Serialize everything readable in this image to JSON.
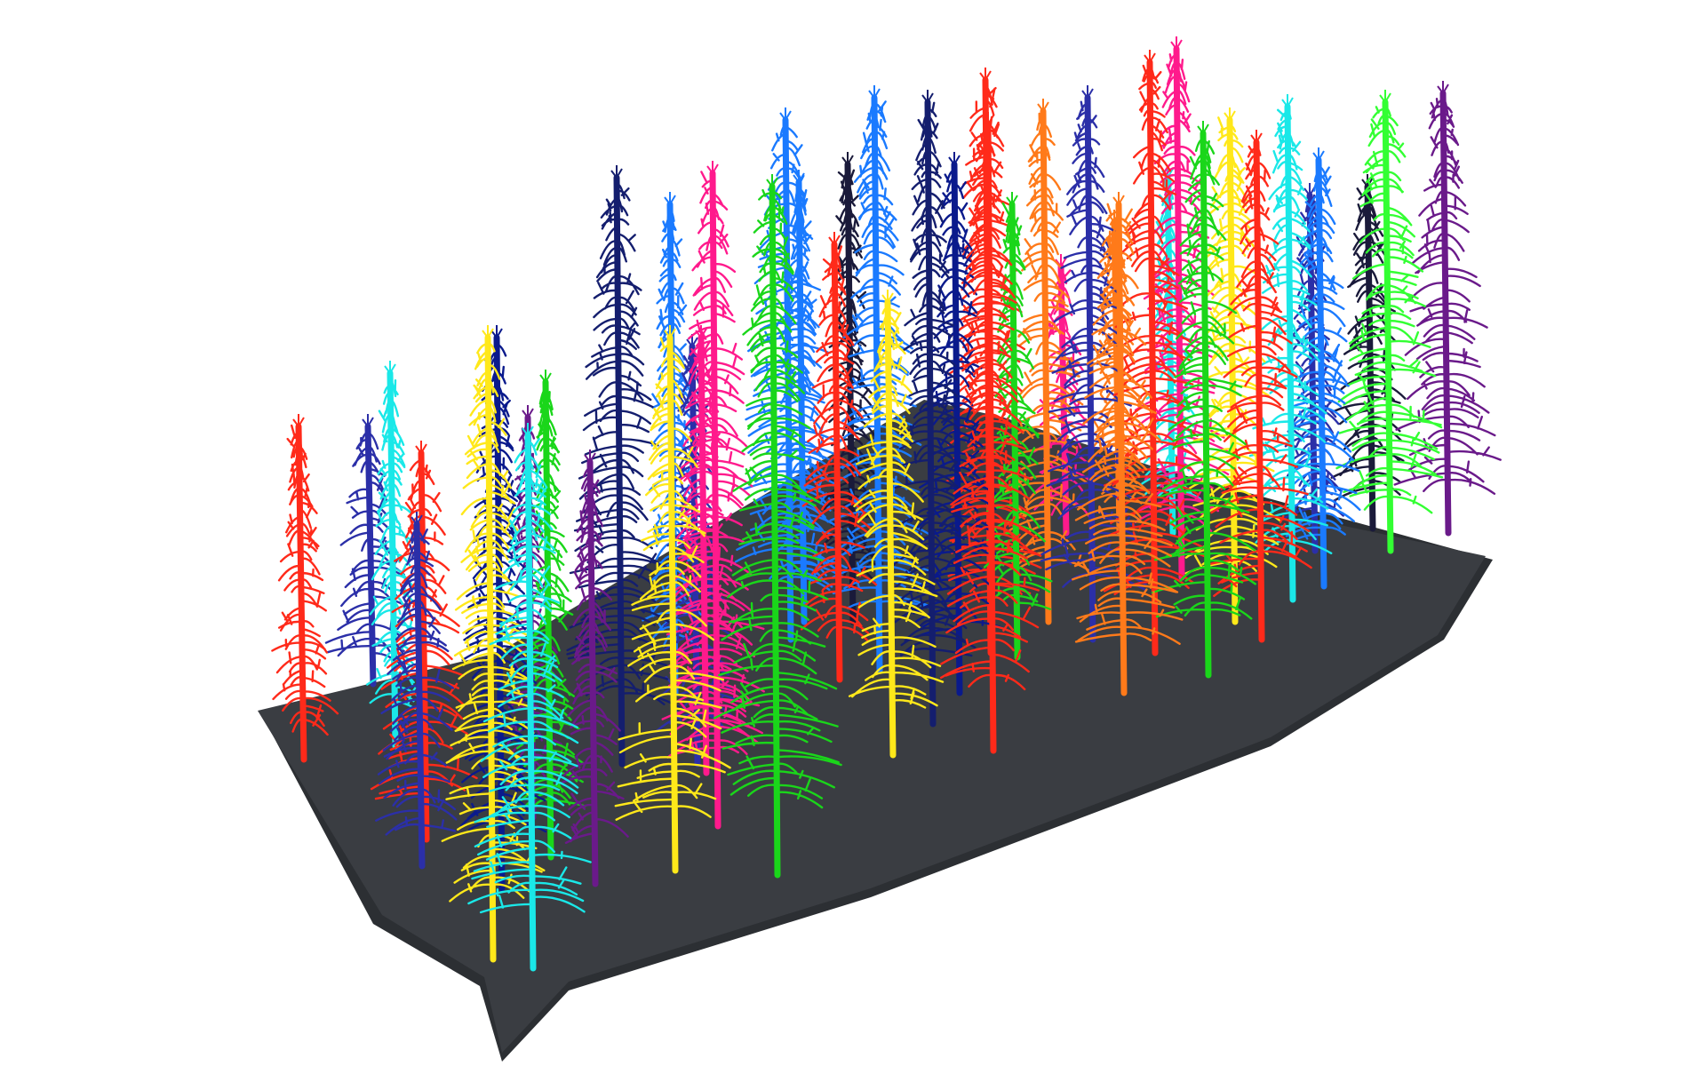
{
  "scene": {
    "background_color": "#ffffff",
    "ground_color": "#3a3d42",
    "ground_shadow_color": "#2c2f33",
    "tree_count": 46,
    "tree_palette": [
      "#ff2a1a",
      "#2b2fa8",
      "#0a1a8c",
      "#ffe81a",
      "#1ad61a",
      "#a01aa0",
      "#ff1a8c",
      "#1a7aff",
      "#1ae8e8",
      "#ff7a1a",
      "#1a1a3a",
      "#33ff33",
      "#6a1a8a",
      "#141e6e"
    ]
  }
}
